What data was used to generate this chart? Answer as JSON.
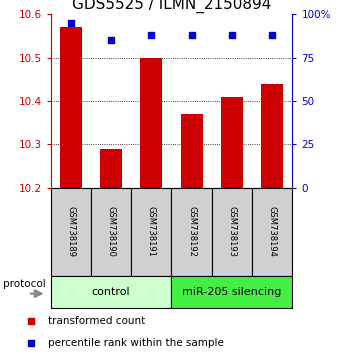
{
  "title": "GDS5525 / ILMN_2150894",
  "samples": [
    "GSM738189",
    "GSM738190",
    "GSM738191",
    "GSM738192",
    "GSM738193",
    "GSM738194"
  ],
  "red_values": [
    10.57,
    10.29,
    10.5,
    10.37,
    10.41,
    10.44
  ],
  "blue_values": [
    95,
    85,
    88,
    88,
    88,
    88
  ],
  "ylim_left": [
    10.2,
    10.6
  ],
  "ylim_right": [
    0,
    100
  ],
  "yticks_left": [
    10.2,
    10.3,
    10.4,
    10.5,
    10.6
  ],
  "yticks_right": [
    0,
    25,
    50,
    75,
    100
  ],
  "grid_yticks": [
    10.3,
    10.4,
    10.5
  ],
  "groups": [
    {
      "label": "control",
      "indices": [
        0,
        1,
        2
      ],
      "color": "#ccffcc"
    },
    {
      "label": "miR-205 silencing",
      "indices": [
        3,
        4,
        5
      ],
      "color": "#44ee44"
    }
  ],
  "bar_color": "#cc0000",
  "dot_color": "#0000cc",
  "bar_width": 0.55,
  "background_color": "#ffffff",
  "legend_items": [
    {
      "label": "transformed count",
      "color": "#cc0000"
    },
    {
      "label": "percentile rank within the sample",
      "color": "#0000cc"
    }
  ],
  "protocol_label": "protocol",
  "title_fontsize": 11,
  "tick_fontsize": 7.5,
  "sample_fontsize": 6,
  "group_fontsize": 8,
  "legend_fontsize": 7.5
}
